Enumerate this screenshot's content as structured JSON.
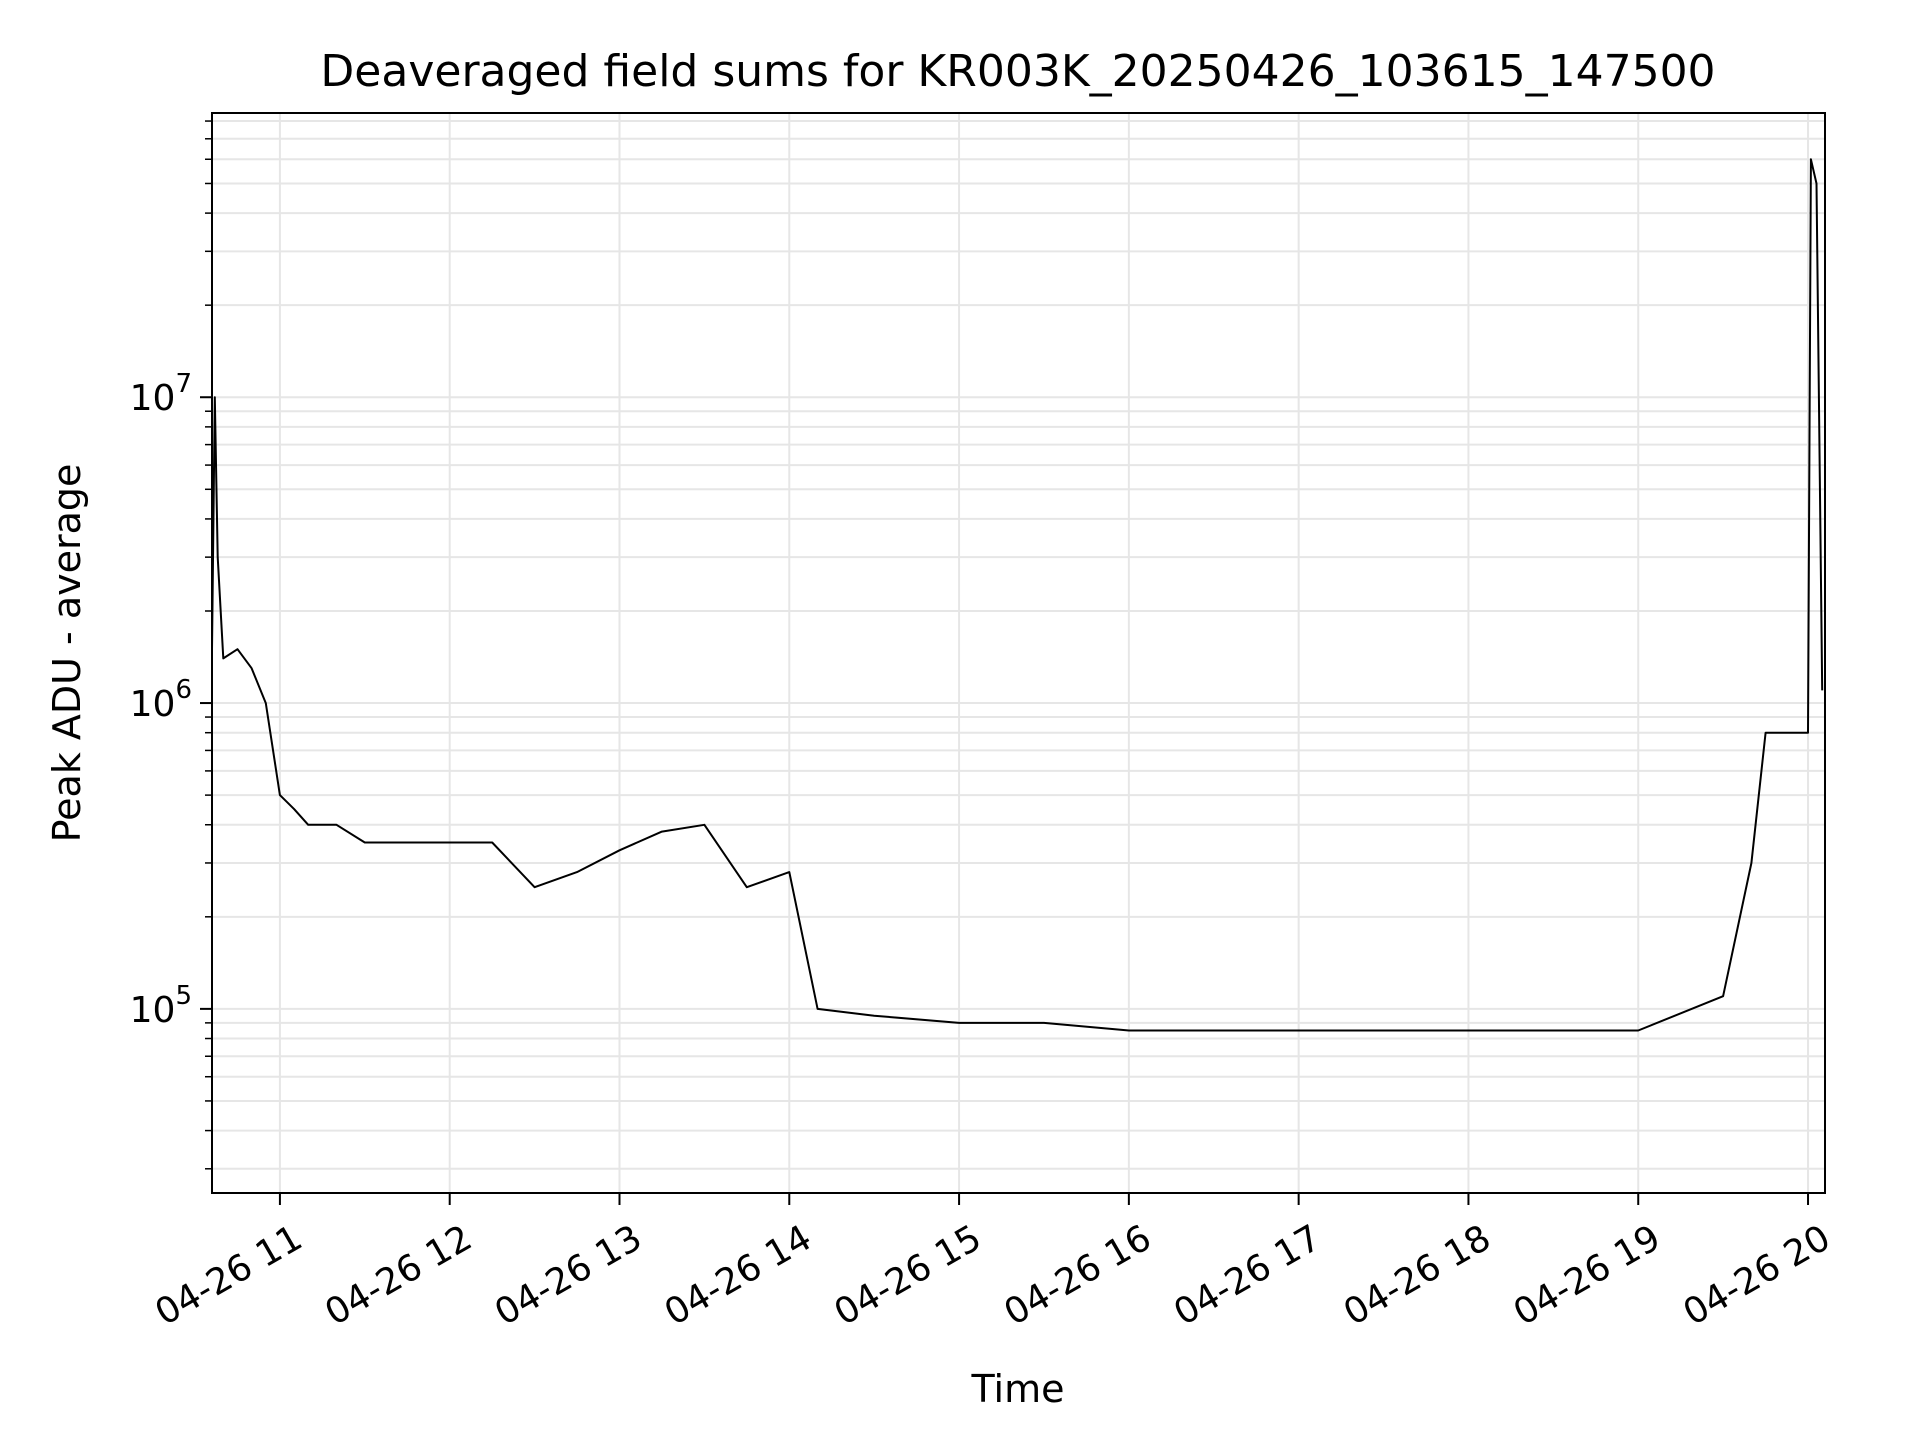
{
  "chart_data": {
    "type": "line",
    "title": "Deaveraged field sums for KR003K_20250426_103615_147500",
    "xlabel": "Time",
    "ylabel": "Peak ADU - average",
    "y_scale": "log",
    "grid": true,
    "legend": "none",
    "line_color": "#000000",
    "xlim": [
      "2025-04-26 10:36",
      "2025-04-26 20:06"
    ],
    "ylim": [
      25000,
      85000000
    ],
    "x_ticks": [
      {
        "value": "2025-04-26 11:00",
        "label": "04-26 11"
      },
      {
        "value": "2025-04-26 12:00",
        "label": "04-26 12"
      },
      {
        "value": "2025-04-26 13:00",
        "label": "04-26 13"
      },
      {
        "value": "2025-04-26 14:00",
        "label": "04-26 14"
      },
      {
        "value": "2025-04-26 15:00",
        "label": "04-26 15"
      },
      {
        "value": "2025-04-26 16:00",
        "label": "04-26 16"
      },
      {
        "value": "2025-04-26 17:00",
        "label": "04-26 17"
      },
      {
        "value": "2025-04-26 18:00",
        "label": "04-26 18"
      },
      {
        "value": "2025-04-26 19:00",
        "label": "04-26 19"
      },
      {
        "value": "2025-04-26 20:00",
        "label": "04-26 20"
      }
    ],
    "y_ticks": [
      {
        "value": 100000,
        "base": "10",
        "exp": "5"
      },
      {
        "value": 1000000,
        "base": "10",
        "exp": "6"
      },
      {
        "value": 10000000,
        "base": "10",
        "exp": "7"
      }
    ],
    "series": [
      {
        "points": [
          [
            "2025-04-26 10:36",
            1500000
          ],
          [
            "2025-04-26 10:37",
            10000000
          ],
          [
            "2025-04-26 10:38",
            3000000
          ],
          [
            "2025-04-26 10:40",
            1400000
          ],
          [
            "2025-04-26 10:45",
            1500000
          ],
          [
            "2025-04-26 10:50",
            1300000
          ],
          [
            "2025-04-26 10:55",
            1000000
          ],
          [
            "2025-04-26 11:00",
            500000
          ],
          [
            "2025-04-26 11:05",
            450000
          ],
          [
            "2025-04-26 11:10",
            400000
          ],
          [
            "2025-04-26 11:20",
            400000
          ],
          [
            "2025-04-26 11:30",
            350000
          ],
          [
            "2025-04-26 11:45",
            350000
          ],
          [
            "2025-04-26 12:00",
            350000
          ],
          [
            "2025-04-26 12:15",
            350000
          ],
          [
            "2025-04-26 12:30",
            250000
          ],
          [
            "2025-04-26 12:45",
            280000
          ],
          [
            "2025-04-26 13:00",
            330000
          ],
          [
            "2025-04-26 13:15",
            380000
          ],
          [
            "2025-04-26 13:30",
            400000
          ],
          [
            "2025-04-26 13:45",
            250000
          ],
          [
            "2025-04-26 14:00",
            280000
          ],
          [
            "2025-04-26 14:10",
            100000
          ],
          [
            "2025-04-26 14:30",
            95000
          ],
          [
            "2025-04-26 15:00",
            90000
          ],
          [
            "2025-04-26 15:30",
            90000
          ],
          [
            "2025-04-26 16:00",
            85000
          ],
          [
            "2025-04-26 16:30",
            85000
          ],
          [
            "2025-04-26 17:00",
            85000
          ],
          [
            "2025-04-26 17:30",
            85000
          ],
          [
            "2025-04-26 18:00",
            85000
          ],
          [
            "2025-04-26 18:30",
            85000
          ],
          [
            "2025-04-26 19:00",
            85000
          ],
          [
            "2025-04-26 19:30",
            110000
          ],
          [
            "2025-04-26 19:40",
            300000
          ],
          [
            "2025-04-26 19:45",
            800000
          ],
          [
            "2025-04-26 19:55",
            800000
          ],
          [
            "2025-04-26 20:00",
            800000
          ],
          [
            "2025-04-26 20:01",
            60000000
          ],
          [
            "2025-04-26 20:03",
            50000000
          ],
          [
            "2025-04-26 20:05",
            1100000
          ]
        ]
      }
    ]
  }
}
